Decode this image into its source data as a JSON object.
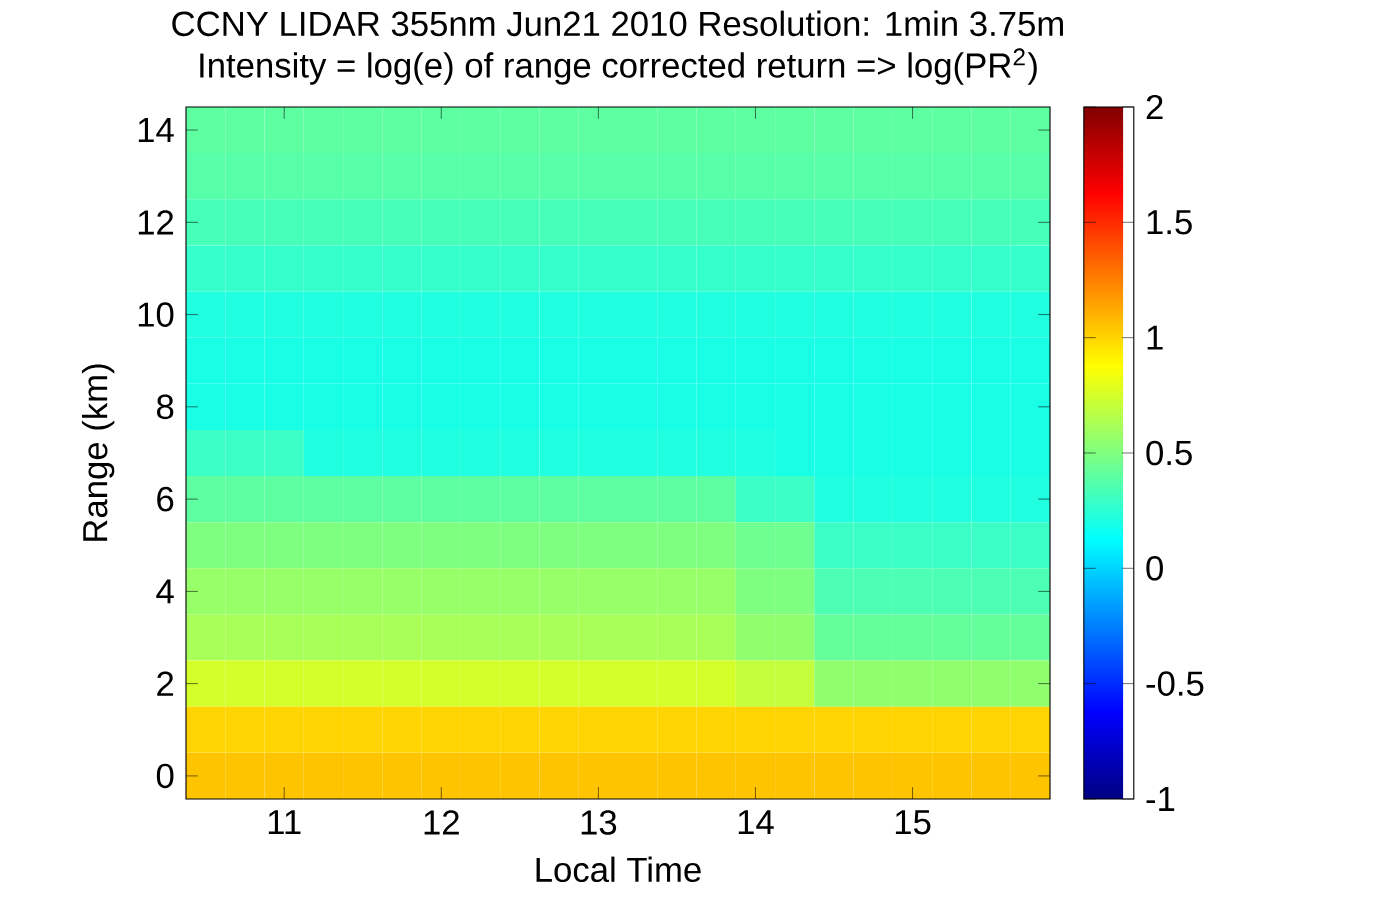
{
  "chart_data": {
    "type": "heatmap",
    "title": "CCNY LIDAR 355nm Jun21 2010 Resolution: 1min 3.75m",
    "subtitle": "Intensity = log(e) of range corrected return => log(PR$^{2}$)",
    "xlabel": "Local Time",
    "ylabel": "Range (km)",
    "categories": [
      null,
      null,
      "11",
      null,
      null,
      null,
      "12",
      null,
      null,
      null,
      "13",
      null,
      null,
      null,
      "14",
      null,
      null,
      null,
      "15",
      null,
      null,
      null
    ],
    "y_categories": [
      "14",
      null,
      "12",
      null,
      "10",
      null,
      "8",
      null,
      "6",
      null,
      "4",
      null,
      "2",
      null,
      "0"
    ],
    "cells": [
      [
        0.4,
        0.4,
        0.4,
        0.4,
        0.4,
        0.4,
        0.4,
        0.4,
        0.4,
        0.4,
        0.4,
        0.4,
        0.4,
        0.4,
        0.4,
        0.4,
        0.4,
        0.4,
        0.4,
        0.4,
        0.4,
        0.4
      ],
      [
        0.38,
        0.38,
        0.38,
        0.38,
        0.38,
        0.38,
        0.38,
        0.38,
        0.38,
        0.38,
        0.38,
        0.38,
        0.38,
        0.38,
        0.38,
        0.38,
        0.38,
        0.38,
        0.38,
        0.38,
        0.38,
        0.38
      ],
      [
        0.33,
        0.33,
        0.33,
        0.33,
        0.33,
        0.33,
        0.33,
        0.33,
        0.33,
        0.33,
        0.33,
        0.33,
        0.33,
        0.33,
        0.33,
        0.33,
        0.33,
        0.33,
        0.33,
        0.33,
        0.33,
        0.33
      ],
      [
        0.28,
        0.28,
        0.28,
        0.28,
        0.28,
        0.28,
        0.28,
        0.28,
        0.28,
        0.28,
        0.28,
        0.28,
        0.28,
        0.28,
        0.28,
        0.28,
        0.28,
        0.28,
        0.28,
        0.28,
        0.28,
        0.28
      ],
      [
        0.22,
        0.22,
        0.22,
        0.22,
        0.22,
        0.22,
        0.22,
        0.22,
        0.22,
        0.22,
        0.22,
        0.22,
        0.22,
        0.22,
        0.22,
        0.22,
        0.22,
        0.22,
        0.22,
        0.22,
        0.22,
        0.22
      ],
      [
        0.2,
        0.2,
        0.2,
        0.2,
        0.2,
        0.2,
        0.2,
        0.2,
        0.2,
        0.2,
        0.2,
        0.2,
        0.2,
        0.2,
        0.2,
        0.2,
        0.2,
        0.2,
        0.2,
        0.2,
        0.2,
        0.2
      ],
      [
        0.2,
        0.2,
        0.2,
        0.2,
        0.2,
        0.2,
        0.2,
        0.2,
        0.2,
        0.2,
        0.2,
        0.2,
        0.2,
        0.2,
        0.2,
        0.2,
        0.2,
        0.2,
        0.2,
        0.2,
        0.2,
        0.2
      ],
      [
        0.3,
        0.3,
        0.3,
        0.22,
        0.22,
        0.22,
        0.22,
        0.22,
        0.22,
        0.22,
        0.22,
        0.22,
        0.22,
        0.22,
        0.22,
        0.2,
        0.2,
        0.2,
        0.2,
        0.2,
        0.2,
        0.2
      ],
      [
        0.4,
        0.4,
        0.4,
        0.4,
        0.4,
        0.4,
        0.4,
        0.4,
        0.4,
        0.4,
        0.4,
        0.4,
        0.4,
        0.4,
        0.3,
        0.3,
        0.22,
        0.22,
        0.22,
        0.22,
        0.22,
        0.22
      ],
      [
        0.5,
        0.5,
        0.5,
        0.5,
        0.5,
        0.5,
        0.5,
        0.5,
        0.5,
        0.5,
        0.5,
        0.5,
        0.5,
        0.5,
        0.45,
        0.45,
        0.3,
        0.3,
        0.3,
        0.3,
        0.3,
        0.3
      ],
      [
        0.57,
        0.57,
        0.57,
        0.57,
        0.57,
        0.57,
        0.57,
        0.57,
        0.57,
        0.57,
        0.57,
        0.57,
        0.57,
        0.57,
        0.5,
        0.5,
        0.35,
        0.35,
        0.35,
        0.35,
        0.35,
        0.35
      ],
      [
        0.62,
        0.62,
        0.62,
        0.62,
        0.62,
        0.62,
        0.62,
        0.62,
        0.62,
        0.62,
        0.62,
        0.62,
        0.62,
        0.62,
        0.55,
        0.55,
        0.42,
        0.42,
        0.42,
        0.42,
        0.42,
        0.42
      ],
      [
        0.75,
        0.75,
        0.75,
        0.75,
        0.75,
        0.75,
        0.75,
        0.75,
        0.75,
        0.75,
        0.75,
        0.75,
        0.75,
        0.75,
        0.7,
        0.7,
        0.55,
        0.55,
        0.55,
        0.55,
        0.55,
        0.55
      ],
      [
        1.0,
        1.0,
        1.0,
        1.0,
        1.0,
        1.0,
        1.0,
        1.0,
        1.0,
        1.0,
        1.0,
        1.0,
        1.0,
        1.0,
        1.0,
        1.0,
        1.0,
        1.0,
        1.0,
        1.0,
        1.0,
        1.0
      ],
      [
        1.05,
        1.05,
        1.05,
        1.05,
        1.05,
        1.05,
        1.05,
        1.05,
        1.05,
        1.05,
        1.05,
        1.05,
        1.05,
        1.05,
        1.05,
        1.05,
        1.05,
        1.05,
        1.05,
        1.05,
        1.05,
        1.05
      ]
    ],
    "clim": [
      -1,
      2
    ],
    "cticks": [
      -1,
      -0.5,
      0,
      0.5,
      1,
      1.5,
      2
    ]
  }
}
